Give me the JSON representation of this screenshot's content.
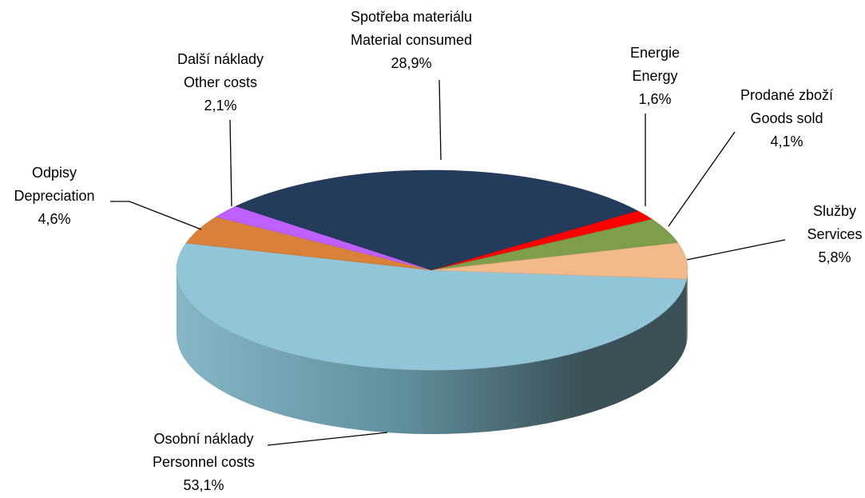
{
  "chart_data": {
    "type": "pie",
    "categories": [
      "Osobní náklady",
      "Odpisy",
      "Další náklady",
      "Spotřeba materiálu",
      "Energie",
      "Prodané zboží",
      "Služby"
    ],
    "categories_en": [
      "Personnel costs",
      "Depreciation",
      "Other costs",
      "Material consumed",
      "Energy",
      "Goods sold",
      "Services"
    ],
    "values": [
      53.1,
      4.6,
      2.1,
      28.9,
      1.6,
      4.1,
      5.8
    ],
    "value_labels": [
      "53,1%",
      "4,6%",
      "2,1%",
      "28,9%",
      "1,6%",
      "4,1%",
      "5,8%"
    ],
    "colors": [
      "#92c5d8",
      "#d9813a",
      "#c060ff",
      "#243b5c",
      "#ff0000",
      "#7f9e4b",
      "#f2b98a"
    ]
  }
}
